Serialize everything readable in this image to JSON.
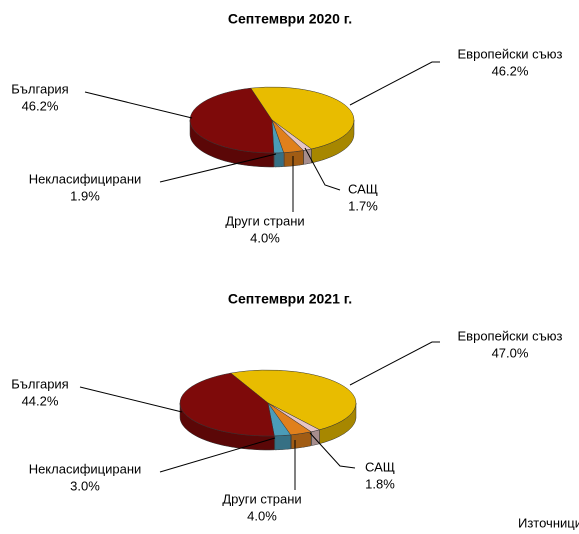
{
  "chart_data": [
    {
      "type": "pie3d",
      "title": "Септември 2020 г.",
      "categories": [
        "Европейски съюз",
        "САЩ",
        "Други страни",
        "Некласифицирани",
        "България"
      ],
      "values": [
        46.2,
        1.7,
        4.0,
        1.9,
        46.2
      ],
      "value_labels": [
        "46.2%",
        "1.7%",
        "4.0%",
        "1.9%",
        "46.2%"
      ],
      "colors": [
        "#e8bc00",
        "#e6c4c4",
        "#e0801c",
        "#4b9cb8",
        "#7e0a0a"
      ]
    },
    {
      "type": "pie3d",
      "title": "Септември 2021 г.",
      "categories": [
        "Европейски съюз",
        "САЩ",
        "Други страни",
        "Некласифицирани",
        "България"
      ],
      "values": [
        47.0,
        1.8,
        4.0,
        3.0,
        44.2
      ],
      "value_labels": [
        "47.0%",
        "1.8%",
        "4.0%",
        "3.0%",
        "44.2%"
      ],
      "colors": [
        "#e8bc00",
        "#e6c4c4",
        "#e0801c",
        "#4b9cb8",
        "#7e0a0a"
      ]
    }
  ],
  "source": "Източници"
}
